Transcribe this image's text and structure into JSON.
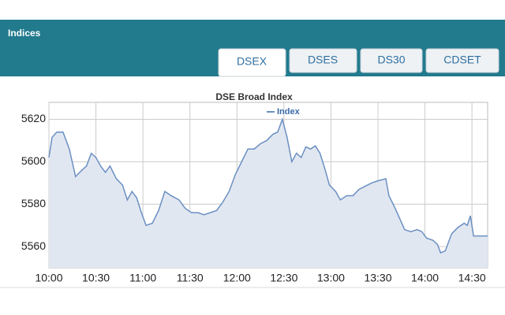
{
  "header": {
    "title": "Indices",
    "tabs": [
      "DSEX",
      "DSES",
      "DS30",
      "CDSET"
    ]
  },
  "chart_data": {
    "type": "line",
    "title": "DSE Broad Index",
    "legend": "top",
    "x": [
      600,
      602,
      605,
      609,
      613,
      617,
      621,
      624,
      627,
      630,
      633,
      636,
      639,
      643,
      647,
      650,
      653,
      656,
      659,
      662,
      666,
      670,
      674,
      678,
      683,
      687,
      691,
      695,
      699,
      703,
      707,
      711,
      715,
      719,
      723,
      727,
      731,
      735,
      739,
      743,
      746,
      749,
      752,
      755,
      758,
      761,
      764,
      767,
      770,
      773,
      776,
      779,
      783,
      786,
      790,
      794,
      798,
      802,
      806,
      810,
      815,
      817,
      821,
      824,
      827,
      831,
      835,
      838,
      841,
      845,
      848,
      850,
      853,
      857,
      861,
      865,
      867,
      869,
      871,
      876,
      880
    ],
    "series": [
      {
        "name": "Index",
        "color": "#6b8fc2",
        "fill": "#e1e7f1",
        "values": [
          5602,
          5611.5,
          5614,
          5614,
          5606,
          5593,
          5596,
          5598,
          5604,
          5602,
          5598,
          5595,
          5598,
          5592,
          5589,
          5582,
          5586,
          5583,
          5576,
          5570,
          5571,
          5577,
          5586,
          5584,
          5582,
          5578,
          5576,
          5576,
          5575,
          5576,
          5577,
          5581,
          5586,
          5594,
          5600,
          5606,
          5606,
          5608.5,
          5610,
          5613,
          5614,
          5620,
          5611.5,
          5600,
          5604,
          5602,
          5607,
          5606,
          5607.5,
          5604,
          5597,
          5589,
          5586,
          5582,
          5584,
          5584,
          5587,
          5588.5,
          5590,
          5591,
          5592,
          5584,
          5578,
          5573,
          5568,
          5567,
          5568,
          5567,
          5564,
          5563,
          5561,
          5557,
          5558,
          5566,
          5569,
          5571,
          5570,
          5574.5,
          5565,
          5565,
          5565
        ]
      }
    ],
    "xlim": [
      600,
      880
    ],
    "xticks": [
      {
        "value": 600,
        "label": "10:00"
      },
      {
        "value": 630,
        "label": "10:30"
      },
      {
        "value": 660,
        "label": "11:00"
      },
      {
        "value": 690,
        "label": "11:30"
      },
      {
        "value": 720,
        "label": "12:00"
      },
      {
        "value": 750,
        "label": "12:30"
      },
      {
        "value": 780,
        "label": "13:00"
      },
      {
        "value": 810,
        "label": "13:30"
      },
      {
        "value": 840,
        "label": "14:00"
      },
      {
        "value": 870,
        "label": "14:30"
      }
    ],
    "ylim": [
      5550,
      5628
    ],
    "yticks": [
      5560,
      5580,
      5600,
      5620
    ],
    "grid": true
  }
}
